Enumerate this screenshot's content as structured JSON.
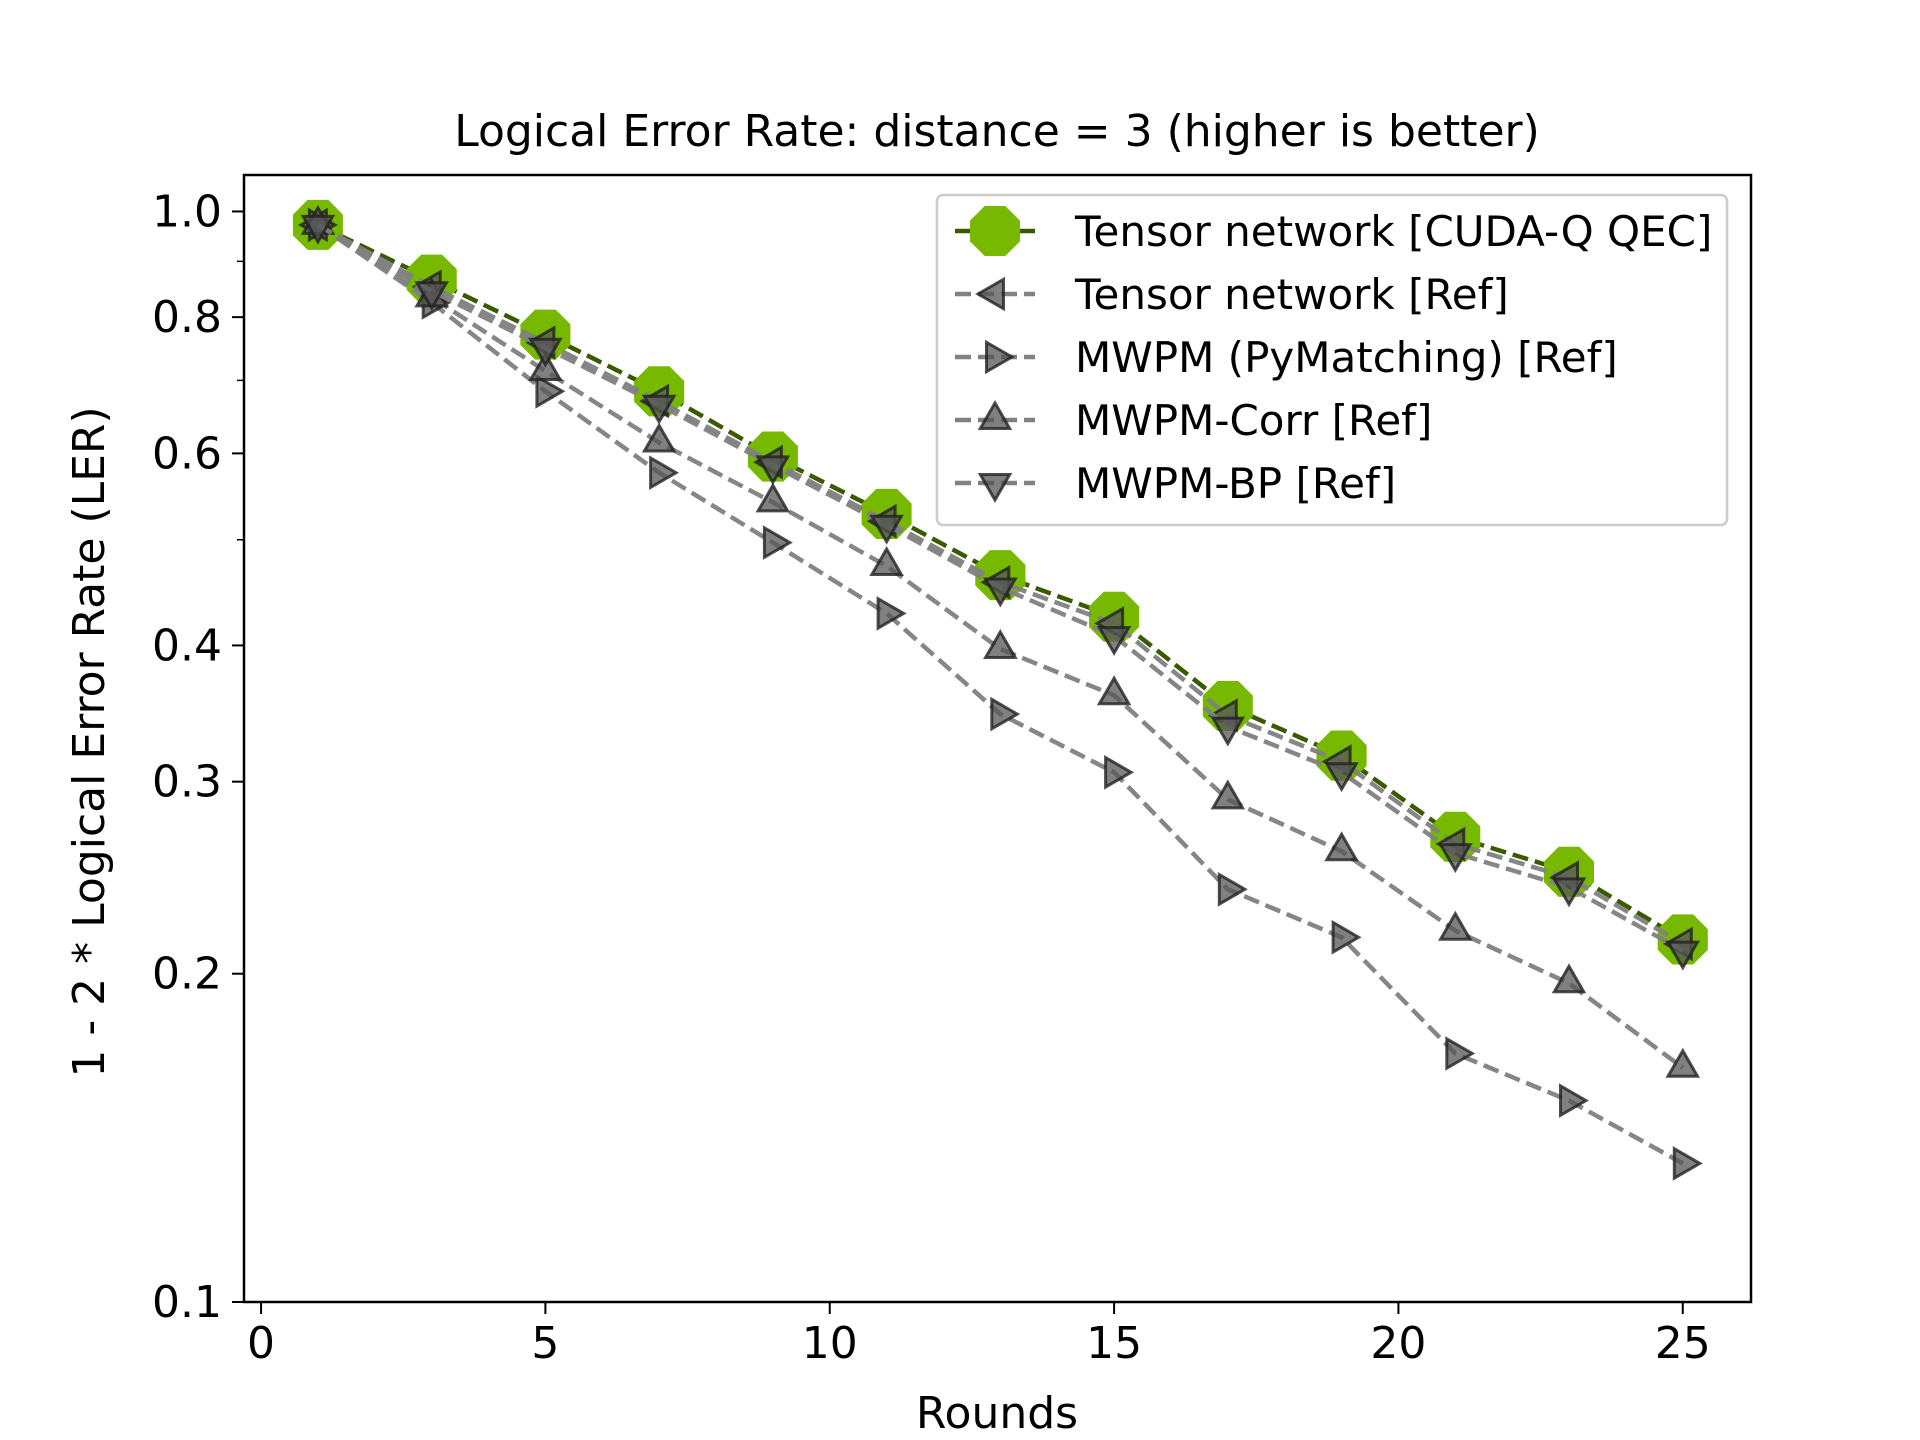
{
  "chart_data": {
    "type": "line",
    "title": "Logical Error Rate: distance = 3 (higher is better)",
    "xlabel": "Rounds",
    "ylabel": "1 - 2 * Logical Error Rate (LER)",
    "x_scale": "linear",
    "y_scale": "log",
    "xlim": [
      -0.3,
      26.2
    ],
    "ylim": [
      0.1,
      1.08
    ],
    "grid": false,
    "legend_position": "top-right",
    "x_ticks": [
      {
        "value": 0,
        "label": "0"
      },
      {
        "value": 5,
        "label": "5"
      },
      {
        "value": 10,
        "label": "10"
      },
      {
        "value": 15,
        "label": "15"
      },
      {
        "value": 20,
        "label": "20"
      },
      {
        "value": 25,
        "label": "25"
      }
    ],
    "y_ticks": [
      {
        "value": 0.1,
        "label": "0.1"
      },
      {
        "value": 0.2,
        "label": "0.2"
      },
      {
        "value": 0.3,
        "label": "0.3"
      },
      {
        "value": 0.4,
        "label": "0.4"
      },
      {
        "value": 0.6,
        "label": "0.6"
      },
      {
        "value": 0.8,
        "label": "0.8"
      },
      {
        "value": 1.0,
        "label": "1.0"
      }
    ],
    "y_minor_ticks": [
      0.5,
      0.7,
      0.9
    ],
    "x": [
      1,
      3,
      5,
      7,
      9,
      11,
      13,
      15,
      17,
      19,
      21,
      23,
      25
    ],
    "series": [
      {
        "name": "Tensor network [CUDA-Q QEC]",
        "marker": "octagon",
        "line_color": "#3a5a00",
        "marker_color": "#76b900",
        "values": [
          0.972,
          0.866,
          0.771,
          0.684,
          0.596,
          0.528,
          0.464,
          0.425,
          0.352,
          0.317,
          0.267,
          0.248,
          0.215
        ]
      },
      {
        "name": "Tensor network [Ref]",
        "marker": "triangle-left",
        "line_color": "#808080",
        "marker_color": "#555555",
        "values": [
          0.972,
          0.853,
          0.758,
          0.67,
          0.589,
          0.52,
          0.457,
          0.419,
          0.345,
          0.313,
          0.263,
          0.245,
          0.213
        ]
      },
      {
        "name": "MWPM (PyMatching) [Ref]",
        "marker": "triangle-right",
        "line_color": "#808080",
        "marker_color": "#555555",
        "values": [
          0.972,
          0.825,
          0.684,
          0.576,
          0.497,
          0.428,
          0.346,
          0.306,
          0.239,
          0.216,
          0.169,
          0.153,
          0.134
        ]
      },
      {
        "name": "MWPM-Corr [Ref]",
        "marker": "triangle-up",
        "line_color": "#808080",
        "marker_color": "#555555",
        "values": [
          0.972,
          0.834,
          0.714,
          0.614,
          0.541,
          0.473,
          0.397,
          0.36,
          0.289,
          0.259,
          0.219,
          0.196,
          0.164
        ]
      },
      {
        "name": "MWPM-BP [Ref]",
        "marker": "triangle-down",
        "line_color": "#808080",
        "marker_color": "#555555",
        "values": [
          0.972,
          0.845,
          0.75,
          0.665,
          0.585,
          0.516,
          0.452,
          0.408,
          0.337,
          0.306,
          0.258,
          0.24,
          0.21
        ]
      }
    ]
  }
}
